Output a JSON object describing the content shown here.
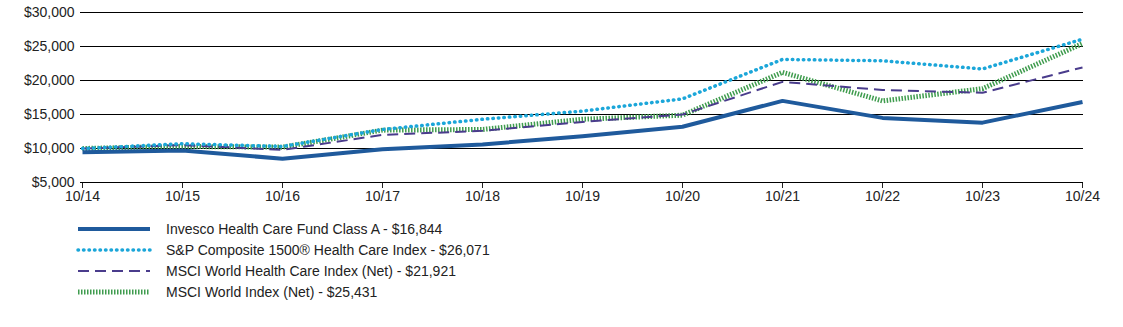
{
  "chart_data": {
    "type": "line",
    "categories": [
      "10/14",
      "10/15",
      "10/16",
      "10/17",
      "10/18",
      "10/19",
      "10/20",
      "10/21",
      "10/22",
      "10/23",
      "10/24"
    ],
    "series": [
      {
        "name": "Invesco Health Care Fund Class A - $16,844",
        "color": "#1f5a9c",
        "line_style": "solid",
        "values": [
          9450,
          9700,
          8500,
          9900,
          10600,
          11800,
          13200,
          17000,
          14500,
          13800,
          16844
        ]
      },
      {
        "name": "S&P Composite 1500® Health Care Index - $26,071",
        "color": "#1ba6d9",
        "line_style": "dotted",
        "values": [
          10000,
          10700,
          10300,
          12800,
          14300,
          15500,
          17300,
          23100,
          22900,
          21700,
          26071
        ]
      },
      {
        "name": "MSCI World Health Care Index (Net) - $21,921",
        "color": "#4a3c8c",
        "line_style": "dashed",
        "values": [
          10000,
          10500,
          9800,
          12000,
          12600,
          13900,
          15000,
          19800,
          18600,
          18200,
          21921
        ]
      },
      {
        "name": "MSCI World Index (Net) - $25,431",
        "color": "#3f9c4e",
        "line_style": "dotted",
        "values": [
          10000,
          10300,
          10200,
          12700,
          12800,
          14300,
          14900,
          21200,
          17000,
          18800,
          25431
        ]
      }
    ],
    "ylim": [
      5000,
      30000
    ],
    "yticks": [
      {
        "value": 5000,
        "label": "$5,000"
      },
      {
        "value": 10000,
        "label": "$10,000"
      },
      {
        "value": 15000,
        "label": "$15,000"
      },
      {
        "value": 20000,
        "label": "$20,000"
      },
      {
        "value": 25000,
        "label": "$25,000"
      },
      {
        "value": 30000,
        "label": "$30,000"
      }
    ],
    "grid": true,
    "legend": "bottom"
  }
}
